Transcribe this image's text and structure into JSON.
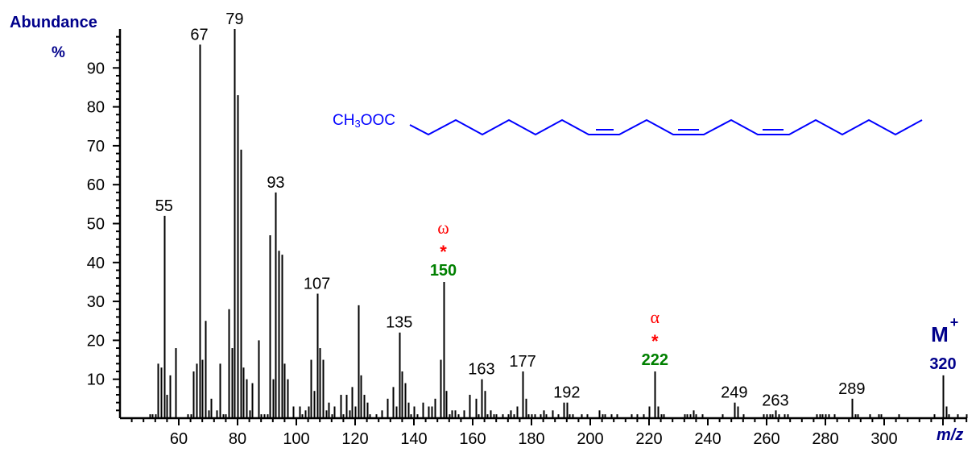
{
  "chart_data": {
    "type": "bar",
    "title": "",
    "ylabel": "Abundance",
    "ylabel_unit": "%",
    "xlabel": "m/z",
    "xlim": [
      40,
      328
    ],
    "ylim": [
      0,
      100
    ],
    "x_ticks": [
      60,
      80,
      100,
      120,
      140,
      160,
      180,
      200,
      220,
      240,
      260,
      280,
      300
    ],
    "y_ticks": [
      10,
      20,
      30,
      40,
      50,
      60,
      70,
      80,
      90
    ],
    "grid": false,
    "legend": null,
    "x": [
      50,
      51,
      52,
      53,
      54,
      55,
      56,
      57,
      59,
      63,
      64,
      65,
      66,
      67,
      68,
      69,
      70,
      71,
      73,
      74,
      75,
      76,
      77,
      78,
      79,
      80,
      81,
      82,
      83,
      84,
      85,
      87,
      88,
      89,
      90,
      91,
      92,
      93,
      94,
      95,
      96,
      97,
      99,
      101,
      102,
      103,
      104,
      105,
      106,
      107,
      108,
      109,
      110,
      111,
      112,
      113,
      115,
      116,
      117,
      118,
      119,
      120,
      121,
      122,
      123,
      124,
      125,
      127,
      129,
      131,
      133,
      134,
      135,
      136,
      137,
      138,
      139,
      140,
      141,
      143,
      145,
      146,
      147,
      149,
      150,
      151,
      152,
      153,
      154,
      155,
      157,
      159,
      161,
      162,
      163,
      164,
      165,
      166,
      167,
      168,
      170,
      172,
      173,
      174,
      175,
      177,
      178,
      179,
      180,
      181,
      183,
      184,
      185,
      187,
      189,
      191,
      192,
      193,
      194,
      197,
      199,
      203,
      204,
      205,
      207,
      209,
      214,
      216,
      218,
      220,
      222,
      223,
      224,
      225,
      232,
      233,
      234,
      235,
      236,
      238,
      245,
      249,
      250,
      252,
      259,
      260,
      261,
      262,
      263,
      264,
      266,
      267,
      277,
      278,
      279,
      280,
      281,
      283,
      289,
      290,
      291,
      295,
      298,
      299,
      305,
      317,
      320,
      321,
      322,
      325,
      328
    ],
    "values": [
      1,
      1,
      1,
      14,
      13,
      52,
      6,
      11,
      18,
      1,
      1,
      12,
      14,
      96,
      15,
      25,
      2,
      5,
      2,
      14,
      1,
      1,
      28,
      18,
      100,
      83,
      69,
      13,
      10,
      2,
      9,
      20,
      1,
      1,
      1,
      47,
      10,
      58,
      43,
      42,
      14,
      10,
      3,
      3,
      1,
      2,
      3,
      15,
      7,
      32,
      18,
      15,
      2,
      4,
      1,
      3,
      6,
      1,
      6,
      2,
      8,
      3,
      29,
      11,
      6,
      4,
      1,
      1,
      2,
      5,
      8,
      3,
      22,
      12,
      9,
      4,
      1,
      3,
      1,
      4,
      3,
      3,
      5,
      15,
      35,
      7,
      1,
      2,
      2,
      1,
      2,
      6,
      5,
      1,
      10,
      7,
      1,
      2,
      1,
      1,
      1,
      1,
      2,
      1,
      3,
      12,
      5,
      1,
      1,
      1,
      1,
      2,
      1,
      2,
      1,
      4,
      4,
      1,
      1,
      1,
      1,
      2,
      1,
      1,
      1,
      1,
      1,
      1,
      1,
      3,
      12,
      3,
      1,
      1,
      1,
      1,
      1,
      2,
      1,
      1,
      1,
      4,
      3,
      1,
      1,
      1,
      1,
      1,
      2,
      1,
      1,
      1,
      1,
      1,
      1,
      1,
      1,
      1,
      5,
      1,
      1,
      1,
      1,
      1,
      1,
      1,
      11,
      3,
      1,
      1,
      1
    ],
    "annotations": [
      {
        "x": 55,
        "y": 52,
        "label": "55",
        "style": "plain"
      },
      {
        "x": 67,
        "y": 96,
        "label": "67",
        "style": "plain"
      },
      {
        "x": 79,
        "y": 100,
        "label": "79",
        "style": "plain"
      },
      {
        "x": 93,
        "y": 58,
        "label": "93",
        "style": "plain"
      },
      {
        "x": 107,
        "y": 32,
        "label": "107",
        "style": "plain"
      },
      {
        "x": 135,
        "y": 22,
        "label": "135",
        "style": "plain"
      },
      {
        "x": 150,
        "y": 35,
        "label": "150",
        "style": "green",
        "marker": "*",
        "greek": "ω"
      },
      {
        "x": 163,
        "y": 10,
        "label": "163",
        "style": "plain"
      },
      {
        "x": 177,
        "y": 12,
        "label": "177",
        "style": "plain"
      },
      {
        "x": 192,
        "y": 4,
        "label": "192",
        "style": "plain"
      },
      {
        "x": 222,
        "y": 12,
        "label": "222",
        "style": "green",
        "marker": "*",
        "greek": "α"
      },
      {
        "x": 249,
        "y": 4,
        "label": "249",
        "style": "plain"
      },
      {
        "x": 263,
        "y": 2,
        "label": "263",
        "style": "plain"
      },
      {
        "x": 289,
        "y": 5,
        "label": "289",
        "style": "plain"
      },
      {
        "x": 320,
        "y": 11,
        "label": "320",
        "style": "molecular-ion",
        "ion_label": "M",
        "ion_charge": "+"
      }
    ],
    "colors": {
      "bars": "#000000",
      "axis_title": "#00008b",
      "greek_marker": "#ff0000",
      "diagnostic_ion": "#008000",
      "molecular_ion": "#00008b",
      "structure": "#0000ff"
    },
    "structure": {
      "label_prefix": "CH",
      "label_sub": "3",
      "label_suffix": "OOC",
      "description": "methyl ester with three cis double bonds"
    }
  }
}
